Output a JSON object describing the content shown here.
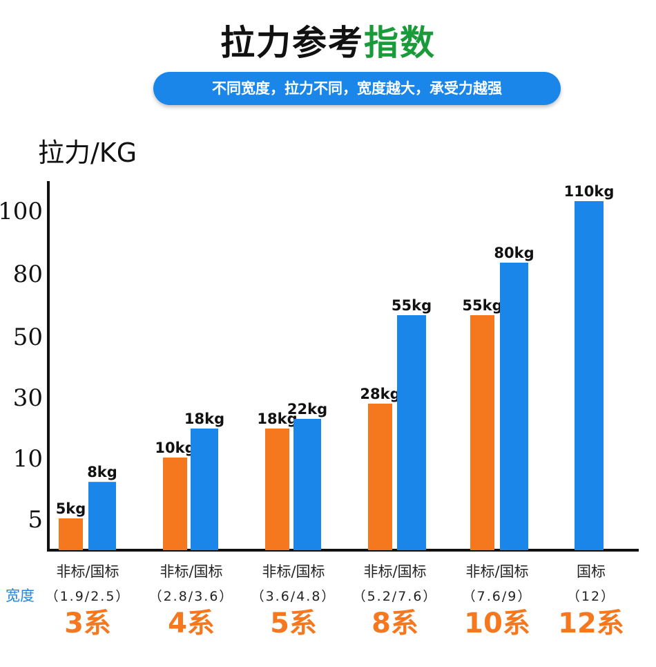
{
  "header": {
    "title_main": "拉力参考",
    "title_accent": "指数",
    "subtitle": "不同宽度，拉力不同，宽度越大，承受力越强"
  },
  "colors": {
    "nonstandard": "#f5781f",
    "standard": "#1a86ea",
    "accent": "#1a9b3a"
  },
  "chart_data": {
    "type": "bar",
    "ylabel": "拉力/KG",
    "yticks": [
      "100",
      "80",
      "50",
      "30",
      "10",
      "5"
    ],
    "categories": [
      "3系",
      "4系",
      "5系",
      "8系",
      "10系",
      "12系"
    ],
    "category_types": [
      "非标/国标",
      "非标/国标",
      "非标/国标",
      "非标/国标",
      "非标/国标",
      "国标"
    ],
    "category_widths": [
      "（1.9/2.5）",
      "（2.8/3.6）",
      "（3.6/4.8）",
      "（5.2/7.6）",
      "（7.6/9）",
      "（12）"
    ],
    "width_label": "宽度",
    "series": [
      {
        "values": [
          5,
          10,
          18,
          28,
          55,
          null
        ],
        "labels": [
          "5kg",
          "10kg",
          "18kg",
          "28kg",
          "55kg",
          ""
        ]
      },
      {
        "values": [
          8,
          18,
          22,
          55,
          80,
          110
        ],
        "labels": [
          "8kg",
          "18kg",
          "22kg",
          "55kg",
          "80kg",
          "110kg"
        ]
      }
    ],
    "scale": "non-linear (tick labels 5,10,30,50,80,100 evenly spaced)",
    "grid": false,
    "legend": "none"
  }
}
